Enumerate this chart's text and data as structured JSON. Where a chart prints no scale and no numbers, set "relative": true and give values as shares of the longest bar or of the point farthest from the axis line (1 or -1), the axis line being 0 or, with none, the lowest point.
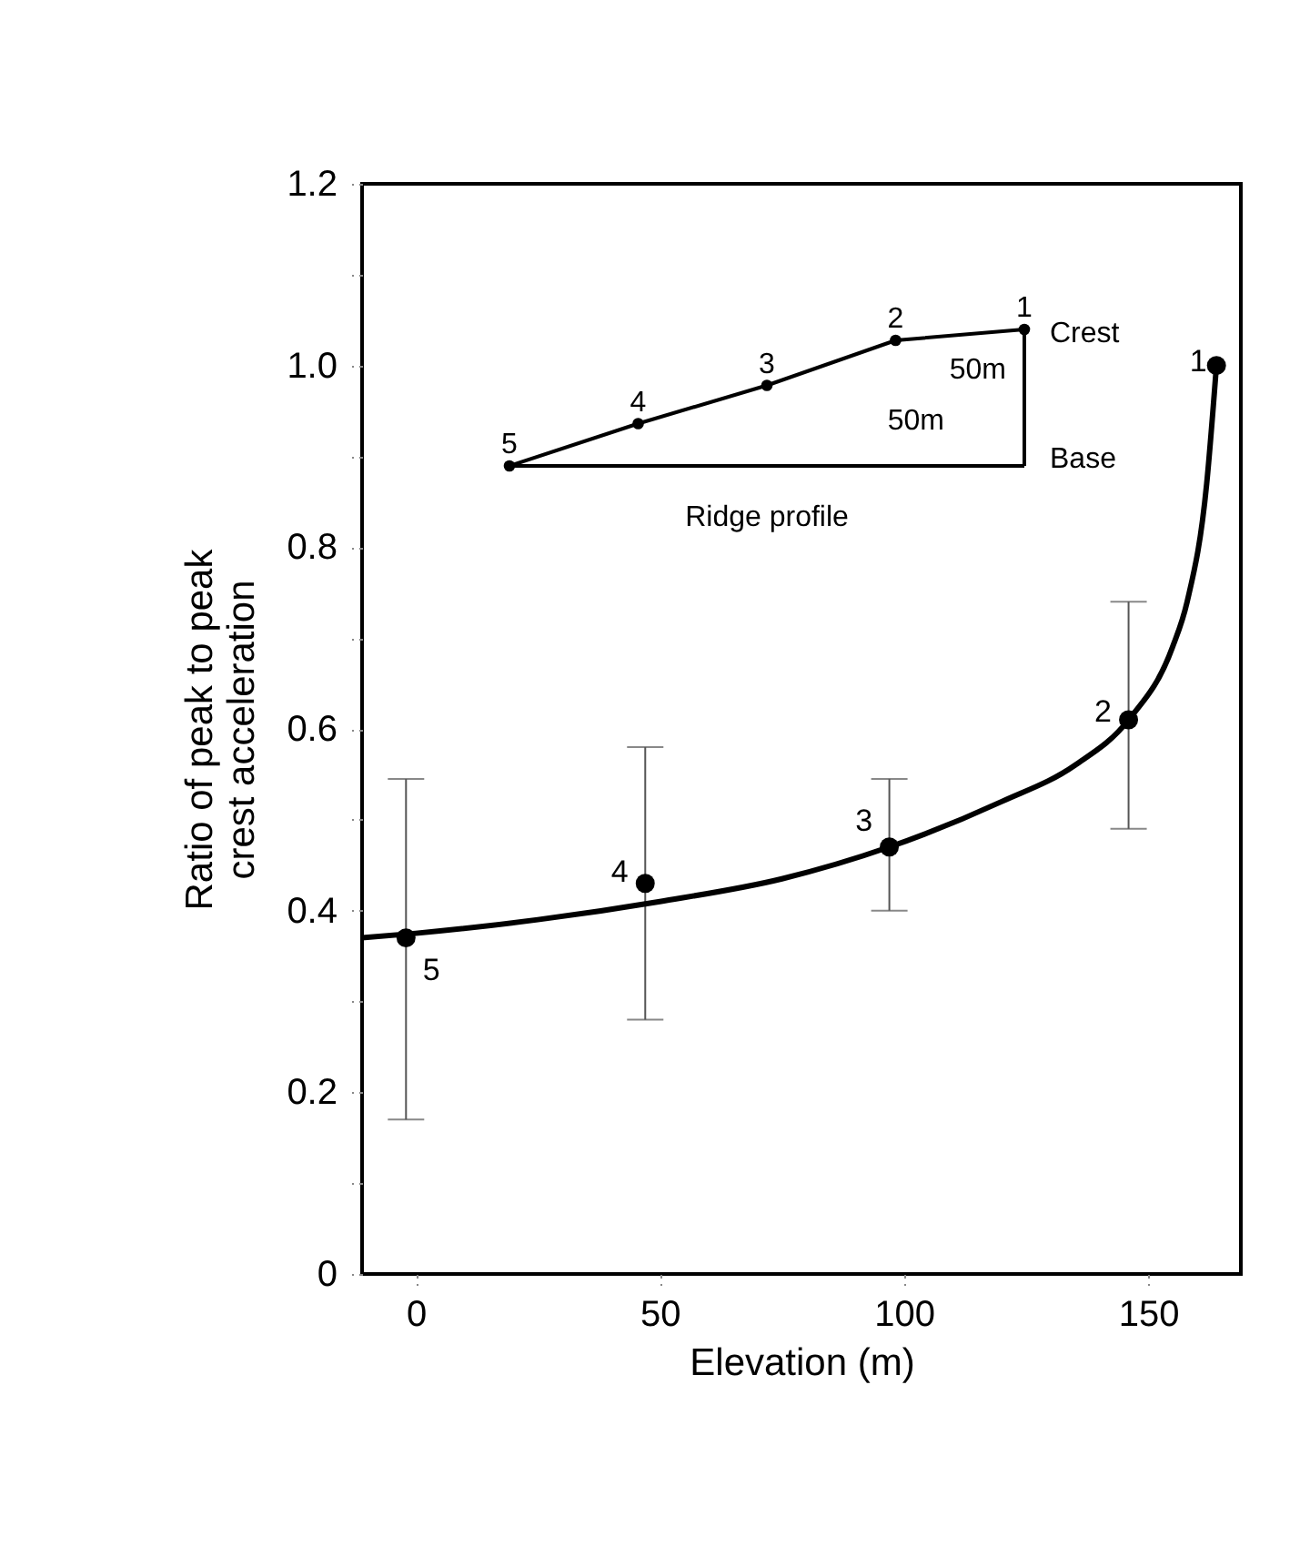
{
  "chart_data": [
    {
      "type": "scatter",
      "xlabel": "Elevation (m)",
      "ylabel": "Ratio of peak to peak crest acceleration",
      "xlim": [
        -11,
        169
      ],
      "ylim": [
        0,
        1.2
      ],
      "xticks": [
        0,
        50,
        100,
        150
      ],
      "yticks": [
        0,
        {
          "value": 0.1,
          "label": null
        },
        0.2,
        {
          "value": 0.3,
          "label": null
        },
        0.4,
        {
          "value": 0.5,
          "label": null
        },
        0.6,
        {
          "value": 0.7,
          "label": null
        },
        0.8,
        {
          "value": 0.9,
          "label": null
        },
        {
          "value": 1.0,
          "label": "1.0"
        },
        {
          "value": 1.1,
          "label": null
        },
        1.2
      ],
      "grid": false,
      "series": [
        {
          "color": "#000000",
          "marker": "circle",
          "x": [
            -2,
            47,
            97,
            146,
            164
          ],
          "values": [
            0.37,
            0.43,
            0.47,
            0.61,
            1.0
          ],
          "errors": [
            [
              0.17,
              0.545
            ],
            [
              0.28,
              0.58
            ],
            [
              0.4,
              0.545
            ],
            [
              0.49,
              0.74
            ],
            null
          ]
        },
        {
          "type": "line",
          "color": "#000000",
          "marker": "none",
          "line_style": "solid",
          "x": [
            -11,
            0,
            25,
            50,
            75,
            97,
            120,
            135,
            146,
            155,
            158,
            162,
            164
          ],
          "values": [
            0.37,
            0.375,
            0.39,
            0.41,
            0.435,
            0.47,
            0.52,
            0.56,
            0.61,
            0.69,
            0.74,
            0.87,
            1.0
          ]
        }
      ],
      "annotations": [
        {
          "text": "5",
          "x": -2,
          "y": 0.37
        },
        {
          "text": "4",
          "x": 47,
          "y": 0.43
        },
        {
          "text": "3",
          "x": 97,
          "y": 0.47
        },
        {
          "text": "2",
          "x": 146,
          "y": 0.61
        },
        {
          "text": "1",
          "x": 164,
          "y": 1.0
        }
      ]
    },
    {
      "type": "line",
      "relative": true,
      "xlabel": "Ridge profile",
      "categories": [
        null,
        null,
        null,
        null,
        null
      ],
      "series": [
        {
          "color": "#000000",
          "marker": "circle",
          "line_style": "solid",
          "values": [
            0,
            0.31,
            0.59,
            0.92,
            1
          ]
        }
      ],
      "annotations": [
        "5",
        "4",
        "3",
        "2",
        "1",
        "Crest",
        "Base",
        "50m",
        "50m"
      ]
    }
  ]
}
